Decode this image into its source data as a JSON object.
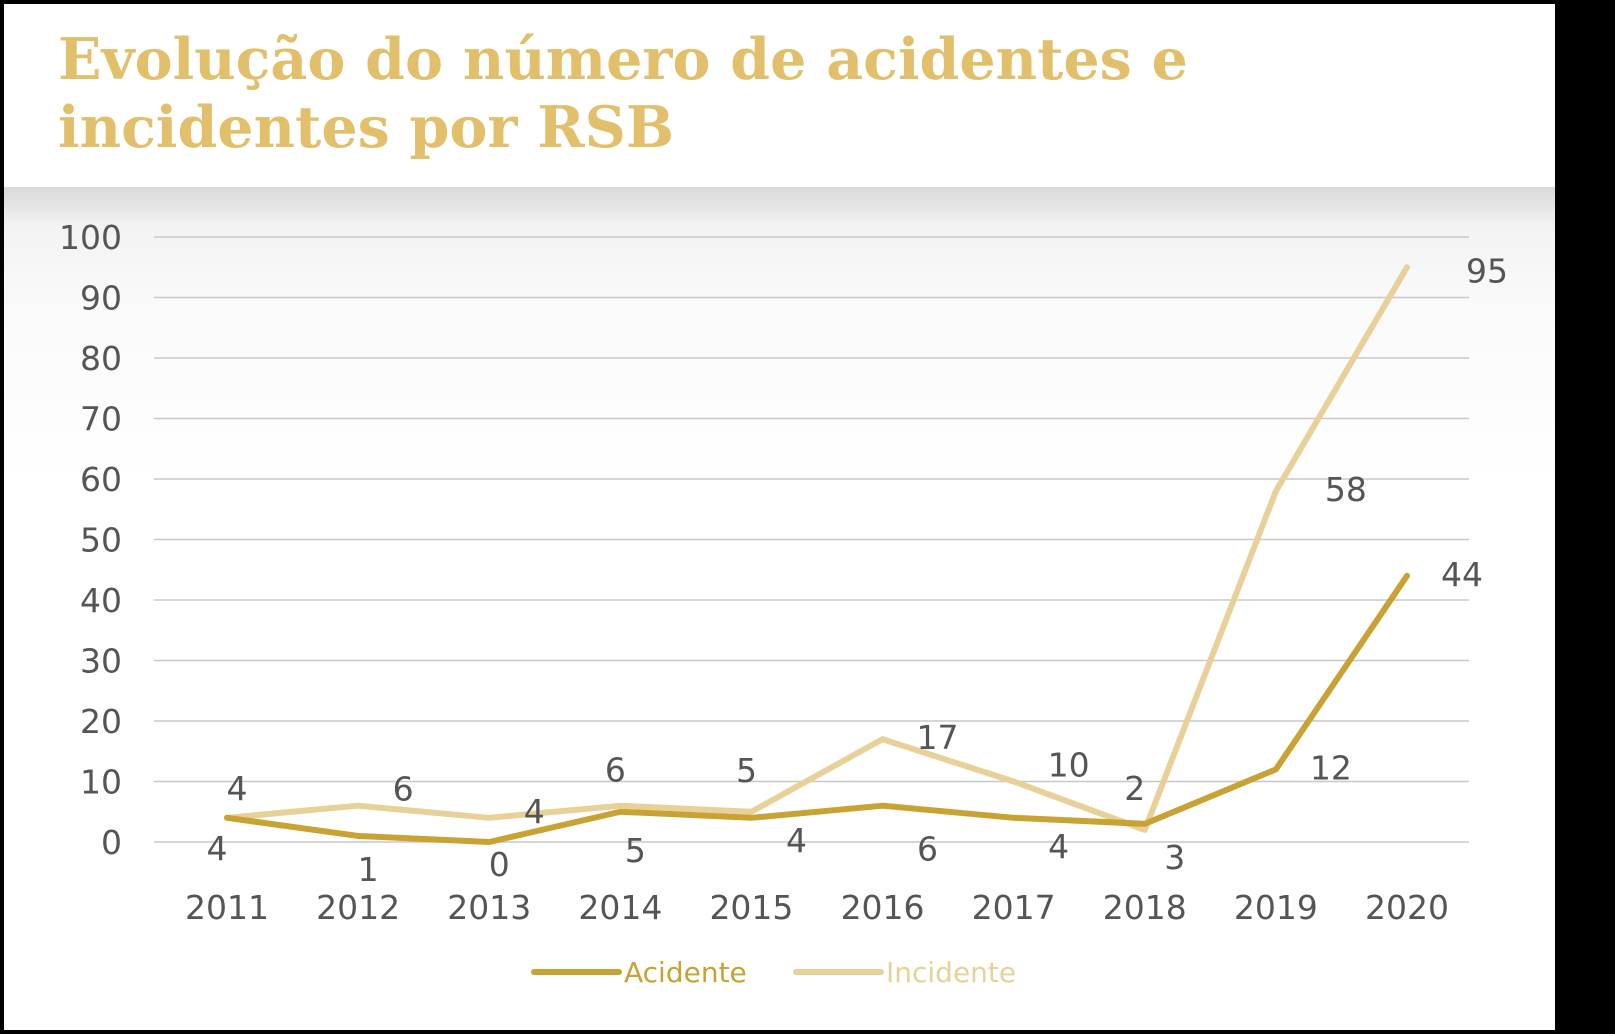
{
  "chart_data": {
    "type": "line",
    "title": "Evolução do número de acidentes e incidentes por RSB",
    "title_lines": [
      "Evolução do número de acidentes e",
      "incidentes por RSB"
    ],
    "categories": [
      "2011",
      "2012",
      "2013",
      "2014",
      "2015",
      "2016",
      "2017",
      "2018",
      "2019",
      "2020"
    ],
    "series": [
      {
        "name": "Acidente",
        "color": "#c9a234",
        "values": [
          4,
          1,
          0,
          5,
          4,
          6,
          4,
          3,
          12,
          44
        ]
      },
      {
        "name": "Incidente",
        "color": "#e8d199",
        "values": [
          4,
          6,
          4,
          6,
          5,
          17,
          10,
          2,
          58,
          95
        ]
      }
    ],
    "ylim": [
      0,
      100
    ],
    "yticks": [
      0,
      10,
      20,
      30,
      40,
      50,
      60,
      70,
      80,
      90,
      100
    ],
    "grid": true,
    "legend": "bottom-center",
    "xlabel": "",
    "ylabel": ""
  }
}
